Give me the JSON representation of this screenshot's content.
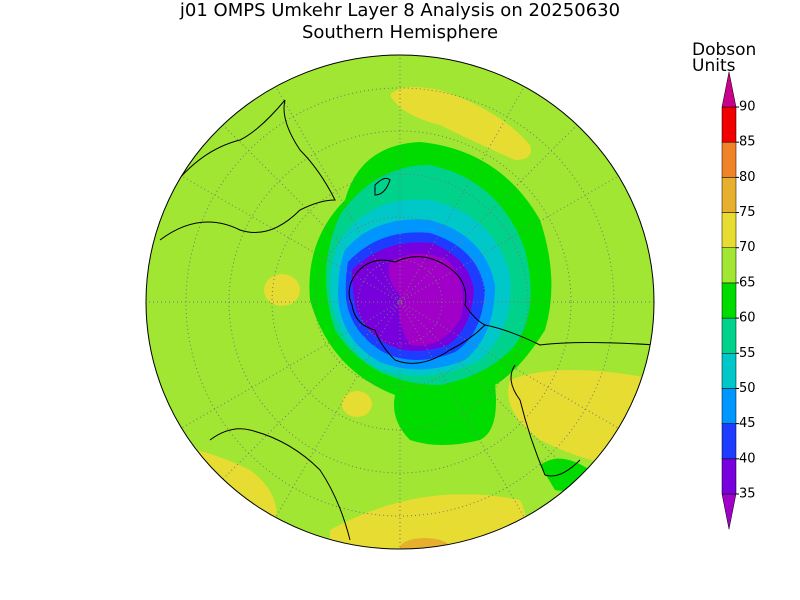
{
  "title": "j01 OMPS Umkehr Layer 8 Analysis on 20250630",
  "subtitle": "Southern Hemisphere",
  "colorbar": {
    "label": [
      "Dobson",
      "Units"
    ],
    "ticks": [
      35,
      40,
      45,
      50,
      55,
      60,
      65,
      70,
      75,
      80,
      85,
      90
    ],
    "colors": [
      "#a000c8",
      "#7800dc",
      "#1e3cff",
      "#0096ff",
      "#00c8c8",
      "#00d28c",
      "#00dc00",
      "#a0e632",
      "#e6dc32",
      "#e6af2d",
      "#f08228",
      "#f00000",
      "#c8008c"
    ]
  }
}
